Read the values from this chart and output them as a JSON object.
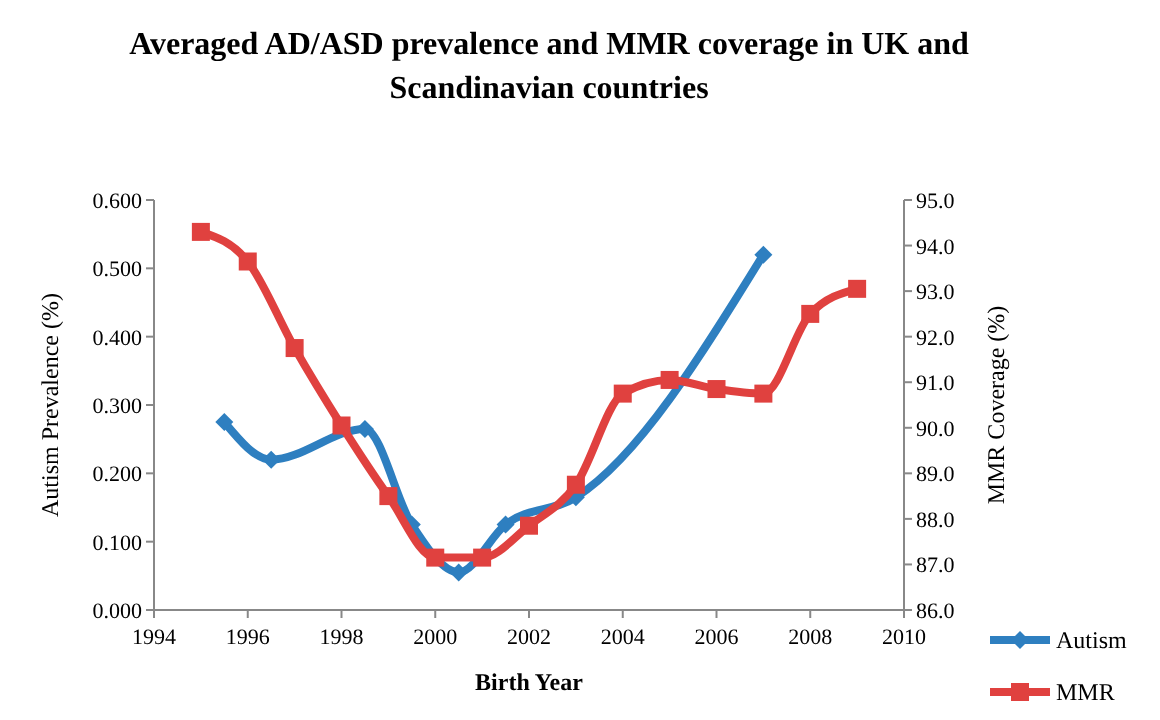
{
  "chart_data": {
    "type": "line",
    "title": "Averaged AD/ASD prevalence and MMR coverage in UK and Scandinavian countries",
    "xlabel": "Birth Year",
    "ylabel": "Autism Prevalence (%)",
    "y2label": "MMR Coverage (%)",
    "xlim": [
      1994,
      2010
    ],
    "xticks": [
      1994,
      1996,
      1998,
      2000,
      2002,
      2004,
      2006,
      2008,
      2010
    ],
    "ylim": [
      0,
      0.6
    ],
    "yticks": [
      {
        "value": 0,
        "label": "0.000"
      },
      {
        "value": 0.1,
        "label": "0.100"
      },
      {
        "value": 0.2,
        "label": "0.200"
      },
      {
        "value": 0.3,
        "label": "0.300"
      },
      {
        "value": 0.4,
        "label": "0.400"
      },
      {
        "value": 0.5,
        "label": "0.500"
      },
      {
        "value": 0.6,
        "label": "0.600"
      }
    ],
    "y2lim": [
      86,
      95
    ],
    "y2ticks": [
      {
        "value": 86,
        "label": "86.0"
      },
      {
        "value": 87,
        "label": "87.0"
      },
      {
        "value": 88,
        "label": "88.0"
      },
      {
        "value": 89,
        "label": "89.0"
      },
      {
        "value": 90,
        "label": "90.0"
      },
      {
        "value": 91,
        "label": "91.0"
      },
      {
        "value": 92,
        "label": "92.0"
      },
      {
        "value": 93,
        "label": "93.0"
      },
      {
        "value": 94,
        "label": "94.0"
      },
      {
        "value": 95,
        "label": "95.0"
      }
    ],
    "grid": false,
    "legend": "bottom right",
    "series": [
      {
        "name": "Autism",
        "color": "#2e7fc0",
        "marker": "diamond",
        "x": [
          1995.5,
          1996.5,
          1998.5,
          1999.5,
          2000.5,
          2001.5,
          2003,
          2007
        ],
        "values": [
          0.275,
          0.22,
          0.265,
          0.125,
          0.055,
          0.125,
          0.165,
          0.52
        ]
      },
      {
        "name": "MMR",
        "color": "#e0413f",
        "marker": "square",
        "axis": "y2",
        "x": [
          1995,
          1996,
          1997,
          1998,
          1999,
          2000,
          2001,
          2002,
          2003,
          2004,
          2005,
          2006,
          2007,
          2008,
          2009
        ],
        "values": [
          94.3,
          93.65,
          91.75,
          90.05,
          88.5,
          87.15,
          87.15,
          87.85,
          88.75,
          90.75,
          91.05,
          90.85,
          90.75,
          92.5,
          93.05
        ]
      }
    ]
  }
}
